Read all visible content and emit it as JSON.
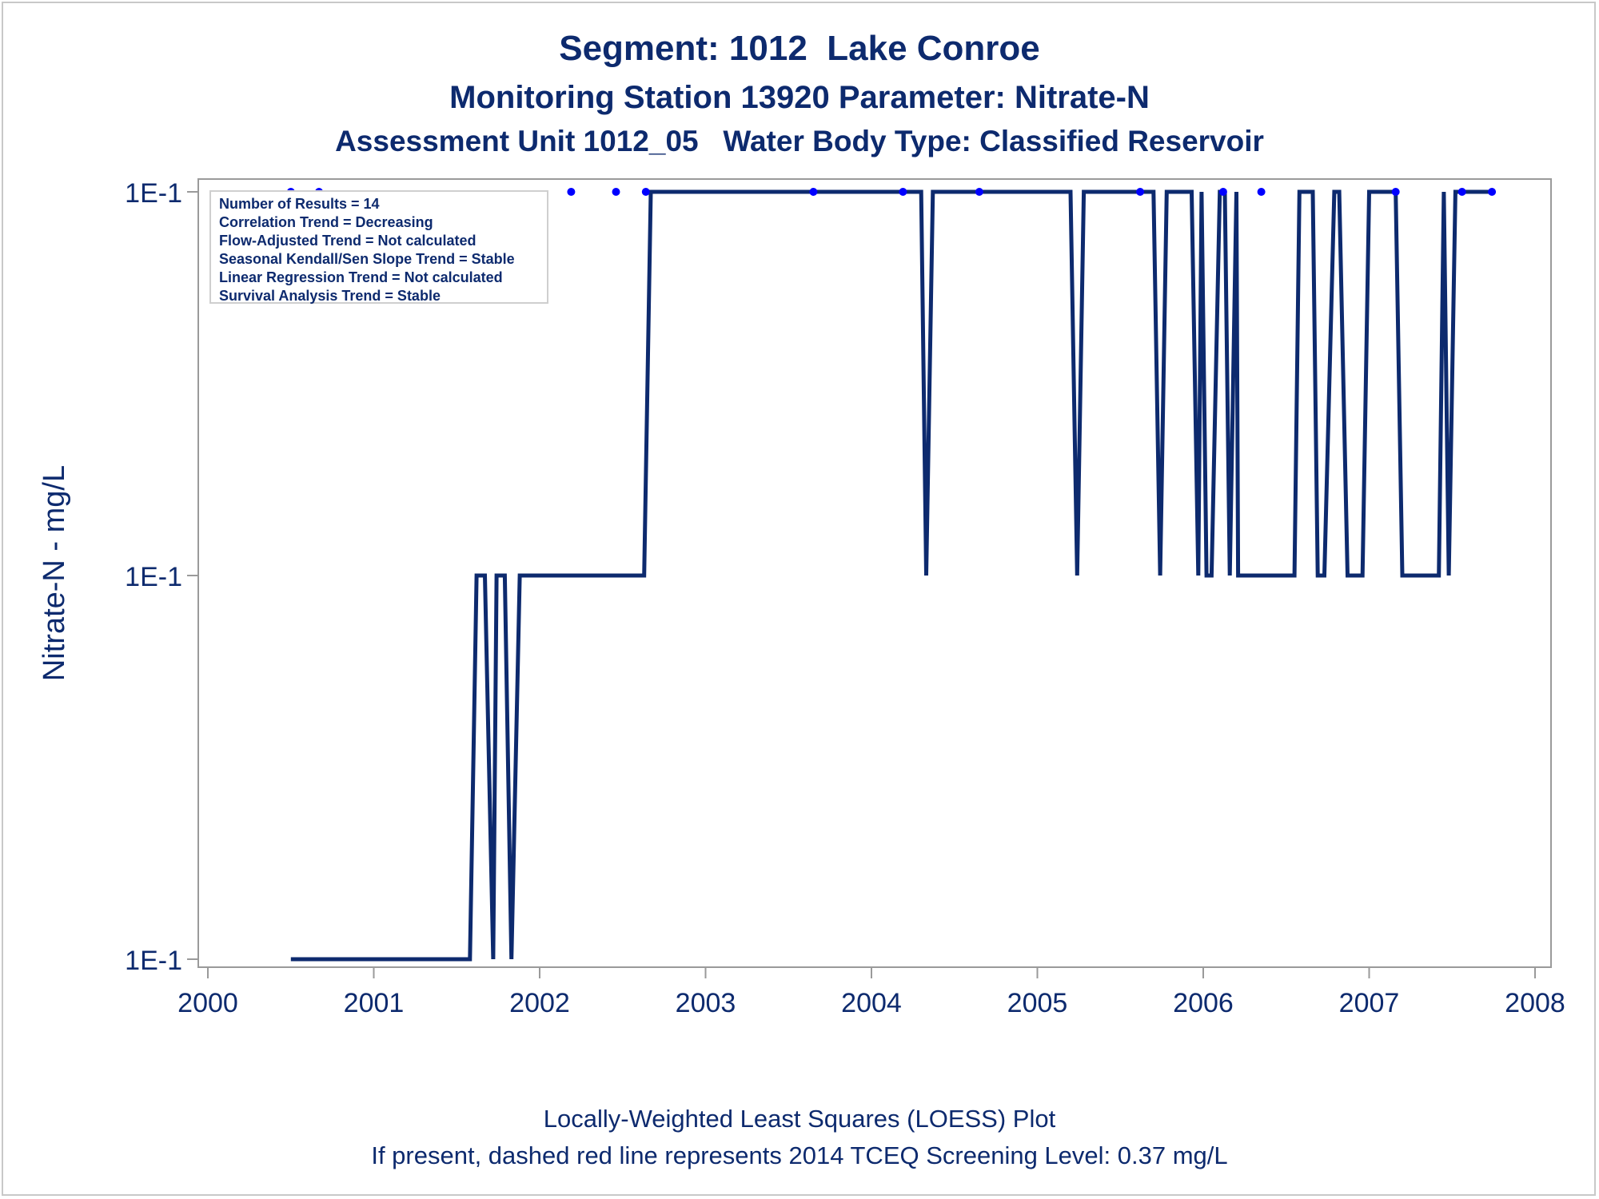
{
  "titles": {
    "line1": "Segment: 1012  Lake Conroe",
    "line2": "Monitoring Station 13920 Parameter: Nitrate-N",
    "line3": "Assessment Unit 1012_05   Water Body Type: Classified Reservoir"
  },
  "stats": [
    "Number of Results = 14",
    "Correlation Trend = Decreasing",
    "Flow-Adjusted Trend = Not calculated",
    "Seasonal Kendall/Sen Slope Trend = Stable",
    "Linear Regression Trend = Not calculated",
    "Survival Analysis Trend = Stable"
  ],
  "footer": {
    "line1": "Locally-Weighted Least Squares (LOESS) Plot",
    "line2": "If present, dashed red line represents 2014 TCEQ Screening Level: 0.37 mg/L"
  },
  "colors": {
    "line": "#0d2a6e",
    "points": "#0000ff",
    "axis": "#9a9a9a",
    "text": "#0d2a6e"
  },
  "chart_data": {
    "type": "line",
    "title": "Segment: 1012  Lake Conroe",
    "ylabel": "Nitrate-N - mg/L",
    "xlabel": "",
    "x_ticks": [
      "2000",
      "2001",
      "2002",
      "2003",
      "2004",
      "2005",
      "2006",
      "2007",
      "2008"
    ],
    "xlim": [
      2000.0,
      2008.0
    ],
    "y_ticks": [
      "1E-1",
      "1E-1",
      "1E-1"
    ],
    "grid": false,
    "legend": "none",
    "points": {
      "x": [
        2000.5,
        2000.67,
        2002.19,
        2002.46,
        2002.64,
        2003.65,
        2004.19,
        2004.65,
        2005.62,
        2006.12,
        2006.35,
        2007.16,
        2007.56,
        2007.74
      ],
      "y": [
        0.1,
        0.1,
        0.1,
        0.1,
        0.1,
        0.1,
        0.1,
        0.1,
        0.1,
        0.1,
        0.1,
        0.1,
        0.1,
        0.1
      ]
    },
    "loess_line": {
      "x": [
        2000.5,
        2001.58,
        2001.62,
        2001.67,
        2001.72,
        2001.74,
        2001.79,
        2001.83,
        2001.88,
        2002.63,
        2002.67,
        2004.3,
        2004.33,
        2004.37,
        2005.2,
        2005.24,
        2005.28,
        2005.7,
        2005.74,
        2005.78,
        2005.93,
        2005.97,
        2005.99,
        2006.02,
        2006.05,
        2006.1,
        2006.13,
        2006.16,
        2006.2,
        2006.21,
        2006.24,
        2006.55,
        2006.58,
        2006.66,
        2006.69,
        2006.73,
        2006.79,
        2006.82,
        2006.87,
        2006.96,
        2007.0,
        2007.16,
        2007.2,
        2007.42,
        2007.45,
        2007.48,
        2007.52,
        2007.54,
        2007.74
      ],
      "y": [
        0.1,
        0.1,
        0.1,
        0.1,
        0.1,
        0.1,
        0.1,
        0.1,
        0.1,
        0.1,
        0.1,
        0.1,
        0.1,
        0.1,
        0.1,
        0.1,
        0.1,
        0.1,
        0.1,
        0.1,
        0.1,
        0.1,
        0.1,
        0.1,
        0.1,
        0.1,
        0.1,
        0.1,
        0.1,
        0.1,
        0.1,
        0.1,
        0.1,
        0.1,
        0.1,
        0.1,
        0.1,
        0.1,
        0.1,
        0.1,
        0.1,
        0.1,
        0.1,
        0.1,
        0.1,
        0.1,
        0.1,
        0.1,
        0.1
      ],
      "level": [
        0,
        0,
        1,
        1,
        0,
        1,
        1,
        0,
        1,
        1,
        2,
        2,
        1,
        2,
        2,
        1,
        2,
        2,
        1,
        2,
        2,
        1,
        2,
        1,
        1,
        2,
        2,
        1,
        2,
        1,
        1,
        1,
        2,
        2,
        1,
        1,
        2,
        2,
        1,
        1,
        2,
        2,
        1,
        1,
        2,
        1,
        2,
        2,
        2
      ]
    }
  }
}
